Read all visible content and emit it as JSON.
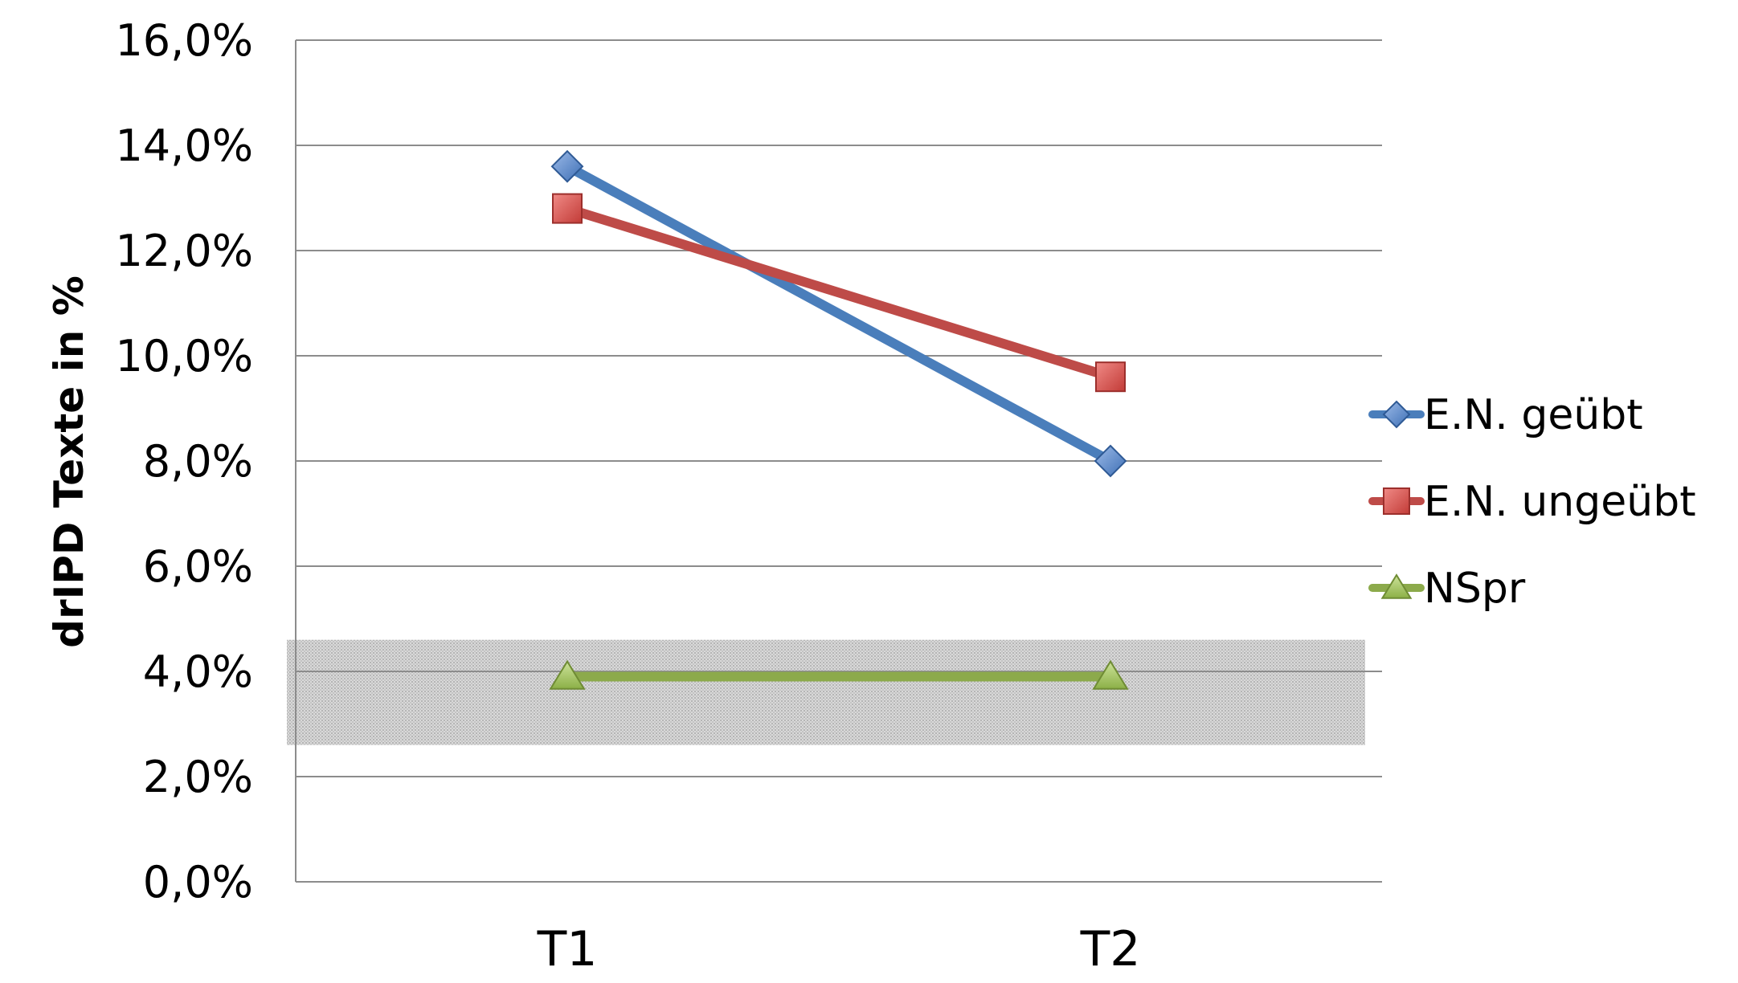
{
  "chart_data": {
    "type": "line",
    "title": "",
    "xlabel": "",
    "ylabel": "drIPD Texte in %",
    "categories": [
      "T1",
      "T2"
    ],
    "ylim": [
      0,
      16
    ],
    "yticks": [
      0,
      2,
      4,
      6,
      8,
      10,
      12,
      14,
      16
    ],
    "ytick_labels": [
      "0,0%",
      "2,0%",
      "4,0%",
      "6,0%",
      "8,0%",
      "10,0%",
      "12,0%",
      "14,0%",
      "16,0%"
    ],
    "grid": true,
    "legend_position": "right",
    "shaded_band": {
      "y_from": 2.6,
      "y_to": 4.6,
      "color": "#c8c8c8"
    },
    "series": [
      {
        "name": "E.N. geübt",
        "values": [
          13.6,
          8.0
        ],
        "color": "#4a7ebb",
        "marker": "diamond"
      },
      {
        "name": "E.N. ungeübt",
        "values": [
          12.8,
          9.6
        ],
        "color": "#be4b48",
        "marker": "square"
      },
      {
        "name": "NSpr",
        "values": [
          3.9,
          3.9
        ],
        "color": "#8caa4b",
        "marker": "triangle"
      }
    ]
  }
}
